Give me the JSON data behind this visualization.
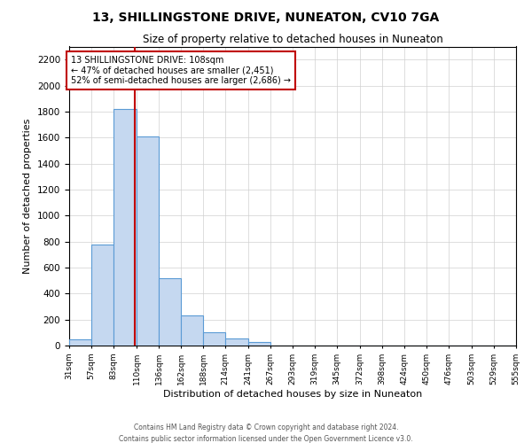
{
  "title": "13, SHILLINGSTONE DRIVE, NUNEATON, CV10 7GA",
  "subtitle": "Size of property relative to detached houses in Nuneaton",
  "xlabel": "Distribution of detached houses by size in Nuneaton",
  "ylabel": "Number of detached properties",
  "bar_left_edges": [
    31,
    57,
    83,
    110,
    136,
    162,
    188,
    214,
    241,
    267,
    293,
    319,
    345,
    372,
    398,
    424,
    450,
    476,
    503,
    529
  ],
  "bar_widths": [
    26,
    26,
    27,
    26,
    26,
    26,
    26,
    27,
    26,
    26,
    26,
    26,
    27,
    26,
    26,
    26,
    26,
    27,
    26,
    26
  ],
  "bar_heights": [
    50,
    775,
    1820,
    1610,
    520,
    230,
    105,
    55,
    25,
    0,
    0,
    0,
    0,
    0,
    0,
    0,
    0,
    0,
    0,
    0
  ],
  "bar_color": "#c5d8f0",
  "bar_edge_color": "#5b9bd5",
  "tick_labels": [
    "31sqm",
    "57sqm",
    "83sqm",
    "110sqm",
    "136sqm",
    "162sqm",
    "188sqm",
    "214sqm",
    "241sqm",
    "267sqm",
    "293sqm",
    "319sqm",
    "345sqm",
    "372sqm",
    "398sqm",
    "424sqm",
    "450sqm",
    "476sqm",
    "503sqm",
    "529sqm",
    "555sqm"
  ],
  "ylim": [
    0,
    2300
  ],
  "yticks": [
    0,
    200,
    400,
    600,
    800,
    1000,
    1200,
    1400,
    1600,
    1800,
    2000,
    2200
  ],
  "vline_x": 108,
  "vline_color": "#c00000",
  "annotation_title": "13 SHILLINGSTONE DRIVE: 108sqm",
  "annotation_line1": "← 47% of detached houses are smaller (2,451)",
  "annotation_line2": "52% of semi-detached houses are larger (2,686) →",
  "footer1": "Contains HM Land Registry data © Crown copyright and database right 2024.",
  "footer2": "Contains public sector information licensed under the Open Government Licence v3.0.",
  "background_color": "#ffffff",
  "grid_color": "#d0d0d0"
}
